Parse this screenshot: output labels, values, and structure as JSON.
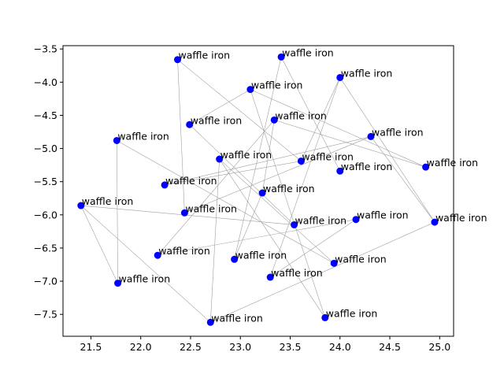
{
  "chart_data": {
    "type": "scatter",
    "title": "",
    "xlabel": "",
    "ylabel": "",
    "xlim": [
      21.22,
      25.14
    ],
    "ylim": [
      -7.83,
      -3.45
    ],
    "x_ticks": [
      21.5,
      22.0,
      22.5,
      23.0,
      23.5,
      24.0,
      24.5,
      25.0
    ],
    "x_tick_labels": [
      "21.5",
      "22.0",
      "22.5",
      "23.0",
      "23.5",
      "24.0",
      "24.5",
      "25.0"
    ],
    "y_ticks": [
      -3.5,
      -4.0,
      -4.5,
      -5.0,
      -5.5,
      -6.0,
      -6.5,
      -7.0,
      -7.5
    ],
    "y_tick_labels": [
      "−3.5",
      "−4.0",
      "−4.5",
      "−5.0",
      "−5.5",
      "−6.0",
      "−6.5",
      "−7.0",
      "−7.5"
    ],
    "grid": false,
    "point_color": "#0000ff",
    "line_color": "#a0a0a0",
    "points": [
      {
        "x": 22.37,
        "y": -3.66,
        "label": "waffle iron"
      },
      {
        "x": 23.41,
        "y": -3.62,
        "label": "waffle iron"
      },
      {
        "x": 23.1,
        "y": -4.11,
        "label": "waffle iron"
      },
      {
        "x": 24.0,
        "y": -3.93,
        "label": "waffle iron"
      },
      {
        "x": 22.49,
        "y": -4.64,
        "label": "waffle iron"
      },
      {
        "x": 23.34,
        "y": -4.57,
        "label": "waffle iron"
      },
      {
        "x": 21.76,
        "y": -4.88,
        "label": "waffle iron"
      },
      {
        "x": 24.31,
        "y": -4.82,
        "label": "waffle iron"
      },
      {
        "x": 22.79,
        "y": -5.16,
        "label": "waffle iron"
      },
      {
        "x": 23.61,
        "y": -5.19,
        "label": "waffle iron"
      },
      {
        "x": 24.0,
        "y": -5.34,
        "label": "waffle iron"
      },
      {
        "x": 24.86,
        "y": -5.28,
        "label": "waffle iron"
      },
      {
        "x": 22.24,
        "y": -5.55,
        "label": "waffle iron"
      },
      {
        "x": 23.22,
        "y": -5.67,
        "label": "waffle iron"
      },
      {
        "x": 21.4,
        "y": -5.86,
        "label": "waffle iron"
      },
      {
        "x": 22.44,
        "y": -5.97,
        "label": "waffle iron"
      },
      {
        "x": 24.16,
        "y": -6.07,
        "label": "waffle iron"
      },
      {
        "x": 23.54,
        "y": -6.15,
        "label": "waffle iron"
      },
      {
        "x": 24.95,
        "y": -6.11,
        "label": "waffle iron"
      },
      {
        "x": 22.17,
        "y": -6.61,
        "label": "waffle iron"
      },
      {
        "x": 22.94,
        "y": -6.67,
        "label": "waffle iron"
      },
      {
        "x": 23.94,
        "y": -6.73,
        "label": "waffle iron"
      },
      {
        "x": 21.77,
        "y": -7.03,
        "label": "waffle iron"
      },
      {
        "x": 23.3,
        "y": -6.94,
        "label": "waffle iron"
      },
      {
        "x": 23.85,
        "y": -7.55,
        "label": "waffle iron"
      },
      {
        "x": 22.7,
        "y": -7.62,
        "label": "waffle iron"
      }
    ],
    "edges": [
      [
        0,
        9
      ],
      [
        0,
        15
      ],
      [
        1,
        10
      ],
      [
        1,
        20
      ],
      [
        2,
        4
      ],
      [
        2,
        11
      ],
      [
        2,
        24
      ],
      [
        3,
        9
      ],
      [
        3,
        18
      ],
      [
        3,
        23
      ],
      [
        4,
        17
      ],
      [
        5,
        19
      ],
      [
        5,
        11
      ],
      [
        6,
        22
      ],
      [
        6,
        21
      ],
      [
        7,
        12
      ],
      [
        7,
        15
      ],
      [
        7,
        18
      ],
      [
        8,
        21
      ],
      [
        8,
        24
      ],
      [
        9,
        12
      ],
      [
        13,
        5
      ],
      [
        13,
        20
      ],
      [
        14,
        22
      ],
      [
        14,
        17
      ],
      [
        16,
        19
      ],
      [
        16,
        23
      ],
      [
        25,
        8
      ],
      [
        25,
        14
      ],
      [
        25,
        18
      ]
    ]
  }
}
